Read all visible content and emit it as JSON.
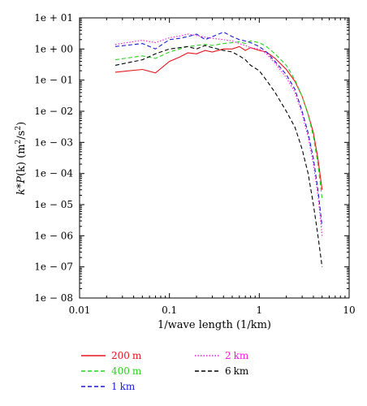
{
  "chart_data": {
    "type": "line",
    "title": "",
    "xlabel": "1/wave length (1/km)",
    "ylabel": "k*P(k) (m²/s²)",
    "xscale": "log",
    "yscale": "log",
    "xlim": [
      0.01,
      10
    ],
    "ylim": [
      1e-08,
      10
    ],
    "grid": false,
    "legend_position": "below",
    "x_ticks": [
      {
        "value": 0.01,
        "label": "0.01"
      },
      {
        "value": 0.1,
        "label": "0.1"
      },
      {
        "value": 1,
        "label": "1"
      },
      {
        "value": 10,
        "label": "10"
      }
    ],
    "y_ticks": [
      {
        "value": 10,
        "label": "1e + 01"
      },
      {
        "value": 1,
        "label": "1e + 00"
      },
      {
        "value": 0.1,
        "label": "1e − 01"
      },
      {
        "value": 0.01,
        "label": "1e − 02"
      },
      {
        "value": 0.001,
        "label": "1e − 03"
      },
      {
        "value": 0.0001,
        "label": "1e − 04"
      },
      {
        "value": 1e-05,
        "label": "1e − 05"
      },
      {
        "value": 1e-06,
        "label": "1e − 06"
      },
      {
        "value": 1e-07,
        "label": "1e − 07"
      },
      {
        "value": 1e-08,
        "label": "1e − 08"
      }
    ],
    "series": [
      {
        "name": "200 m",
        "color": "#e8141b",
        "dash": "solid",
        "x": [
          0.025,
          0.05,
          0.07,
          0.1,
          0.13,
          0.16,
          0.2,
          0.25,
          0.3,
          0.4,
          0.5,
          0.6,
          0.7,
          0.8,
          1.0,
          1.2,
          1.5,
          2.0,
          2.5,
          3.0,
          3.5,
          4.0,
          4.5,
          5.0
        ],
        "y": [
          0.18,
          0.22,
          0.17,
          0.4,
          0.55,
          0.75,
          0.7,
          0.9,
          0.8,
          1.0,
          1.0,
          1.2,
          0.9,
          1.1,
          0.9,
          0.8,
          0.5,
          0.22,
          0.09,
          0.03,
          0.008,
          0.002,
          0.0003,
          3e-05
        ]
      },
      {
        "name": "400 m",
        "color": "#2ad11e",
        "dash": "dashed",
        "x": [
          0.025,
          0.05,
          0.07,
          0.1,
          0.13,
          0.16,
          0.2,
          0.25,
          0.3,
          0.4,
          0.5,
          0.6,
          0.7,
          0.8,
          1.0,
          1.2,
          1.5,
          2.0,
          2.5,
          3.0,
          3.5,
          4.0,
          4.5,
          5.0
        ],
        "y": [
          0.45,
          0.6,
          0.5,
          0.8,
          1.0,
          1.2,
          1.3,
          1.4,
          1.3,
          1.5,
          1.6,
          1.7,
          1.5,
          1.8,
          1.6,
          1.2,
          0.7,
          0.3,
          0.1,
          0.03,
          0.008,
          0.0015,
          0.0002,
          1.5e-05
        ]
      },
      {
        "name": "1 km",
        "color": "#1b1bd1",
        "dash": "dashed",
        "x": [
          0.025,
          0.05,
          0.07,
          0.1,
          0.13,
          0.16,
          0.2,
          0.25,
          0.3,
          0.4,
          0.5,
          0.6,
          0.7,
          0.8,
          1.0,
          1.2,
          1.5,
          2.0,
          2.5,
          3.0,
          3.5,
          4.0,
          4.5,
          5.0
        ],
        "y": [
          1.2,
          1.5,
          1.0,
          2.0,
          2.2,
          2.5,
          3.0,
          2.0,
          2.5,
          3.5,
          2.5,
          2.0,
          1.8,
          1.6,
          1.2,
          0.8,
          0.4,
          0.15,
          0.05,
          0.01,
          0.002,
          0.0003,
          3e-05,
          2e-06
        ]
      },
      {
        "name": "2 km",
        "color": "#ee1bd7",
        "dash": "dotted",
        "x": [
          0.025,
          0.05,
          0.07,
          0.1,
          0.13,
          0.16,
          0.2,
          0.25,
          0.3,
          0.4,
          0.5,
          0.6,
          0.7,
          0.8,
          1.0,
          1.2,
          1.5,
          2.0,
          2.5,
          3.0,
          3.5,
          4.0,
          4.5,
          5.0
        ],
        "y": [
          1.4,
          1.9,
          1.6,
          2.3,
          2.6,
          3.0,
          2.7,
          2.4,
          2.2,
          2.0,
          1.8,
          1.5,
          1.3,
          1.1,
          1.0,
          0.7,
          0.35,
          0.12,
          0.04,
          0.008,
          0.0015,
          0.0002,
          2e-05,
          1e-06
        ]
      },
      {
        "name": "6 km",
        "color": "#000000",
        "dash": "dashed",
        "x": [
          0.025,
          0.05,
          0.07,
          0.1,
          0.13,
          0.16,
          0.2,
          0.25,
          0.3,
          0.4,
          0.5,
          0.6,
          0.7,
          0.8,
          1.0,
          1.2,
          1.5,
          2.0,
          2.5,
          3.0,
          3.5,
          4.0,
          4.5,
          5.0
        ],
        "y": [
          0.3,
          0.45,
          0.7,
          1.0,
          1.1,
          1.2,
          1.0,
          1.3,
          1.1,
          0.9,
          0.8,
          0.6,
          0.45,
          0.3,
          0.2,
          0.1,
          0.04,
          0.01,
          0.003,
          0.0006,
          0.0001,
          1e-05,
          1e-06,
          1e-07
        ]
      }
    ],
    "legend_units": [
      {
        "number": "200",
        "unit": "m"
      },
      {
        "number": "400",
        "unit": "m"
      },
      {
        "number": "1",
        "unit": "km"
      },
      {
        "number": "2",
        "unit": "km"
      },
      {
        "number": "6",
        "unit": "km"
      }
    ]
  }
}
